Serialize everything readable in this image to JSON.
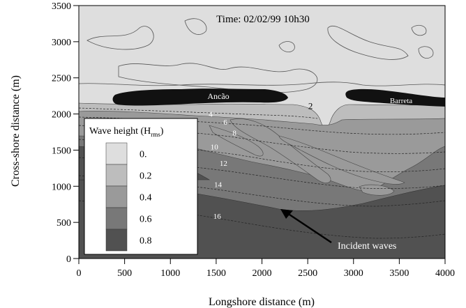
{
  "chart_data": {
    "type": "heatmap",
    "title": "Time: 02/02/99 10h30",
    "xlabel": "Longshore distance (m)",
    "ylabel": "Cross-shore distance (m)",
    "xlim": [
      0,
      4000
    ],
    "ylim": [
      0,
      3500
    ],
    "x_ticks": [
      0,
      500,
      1000,
      1500,
      2000,
      2500,
      3000,
      3500,
      4000
    ],
    "y_ticks": [
      0,
      500,
      1000,
      1500,
      2000,
      2500,
      3000,
      3500
    ],
    "grid": false,
    "colorbar": {
      "title_main": "Wave height (H",
      "title_sub": "rms",
      "title_end": ")",
      "placement": "lower-left",
      "levels": [
        {
          "label": "0.",
          "value": 0.0,
          "color": "#dedede"
        },
        {
          "label": "0.2",
          "value": 0.2,
          "color": "#bdbdbd"
        },
        {
          "label": "0.4",
          "value": 0.4,
          "color": "#9a9a9a"
        },
        {
          "label": "0.6",
          "value": 0.6,
          "color": "#787878"
        },
        {
          "label": "0.8",
          "value": 0.8,
          "color": "#515151"
        }
      ]
    },
    "islands": [
      {
        "name": "Ancão",
        "x": [
          400,
          2300
        ],
        "y": [
          2140,
          2300
        ]
      },
      {
        "name": "Barreta",
        "x": [
          2930,
          4000
        ],
        "y": [
          2130,
          2330
        ]
      }
    ],
    "depth_contour_labels": [
      {
        "text": "2",
        "x": 2530,
        "y": 2070
      },
      {
        "text": "4",
        "x": 1440,
        "y": 1960
      },
      {
        "text": "6",
        "x": 1600,
        "y": 1850
      },
      {
        "text": "8",
        "x": 1700,
        "y": 1700
      },
      {
        "text": "10",
        "x": 1480,
        "y": 1510
      },
      {
        "text": "12",
        "x": 1580,
        "y": 1280
      },
      {
        "text": "14",
        "x": 1520,
        "y": 990
      },
      {
        "text": "16",
        "x": 1510,
        "y": 550
      }
    ],
    "annotations": [
      {
        "text": "Incident waves",
        "x": 2880,
        "y": 150
      }
    ]
  }
}
